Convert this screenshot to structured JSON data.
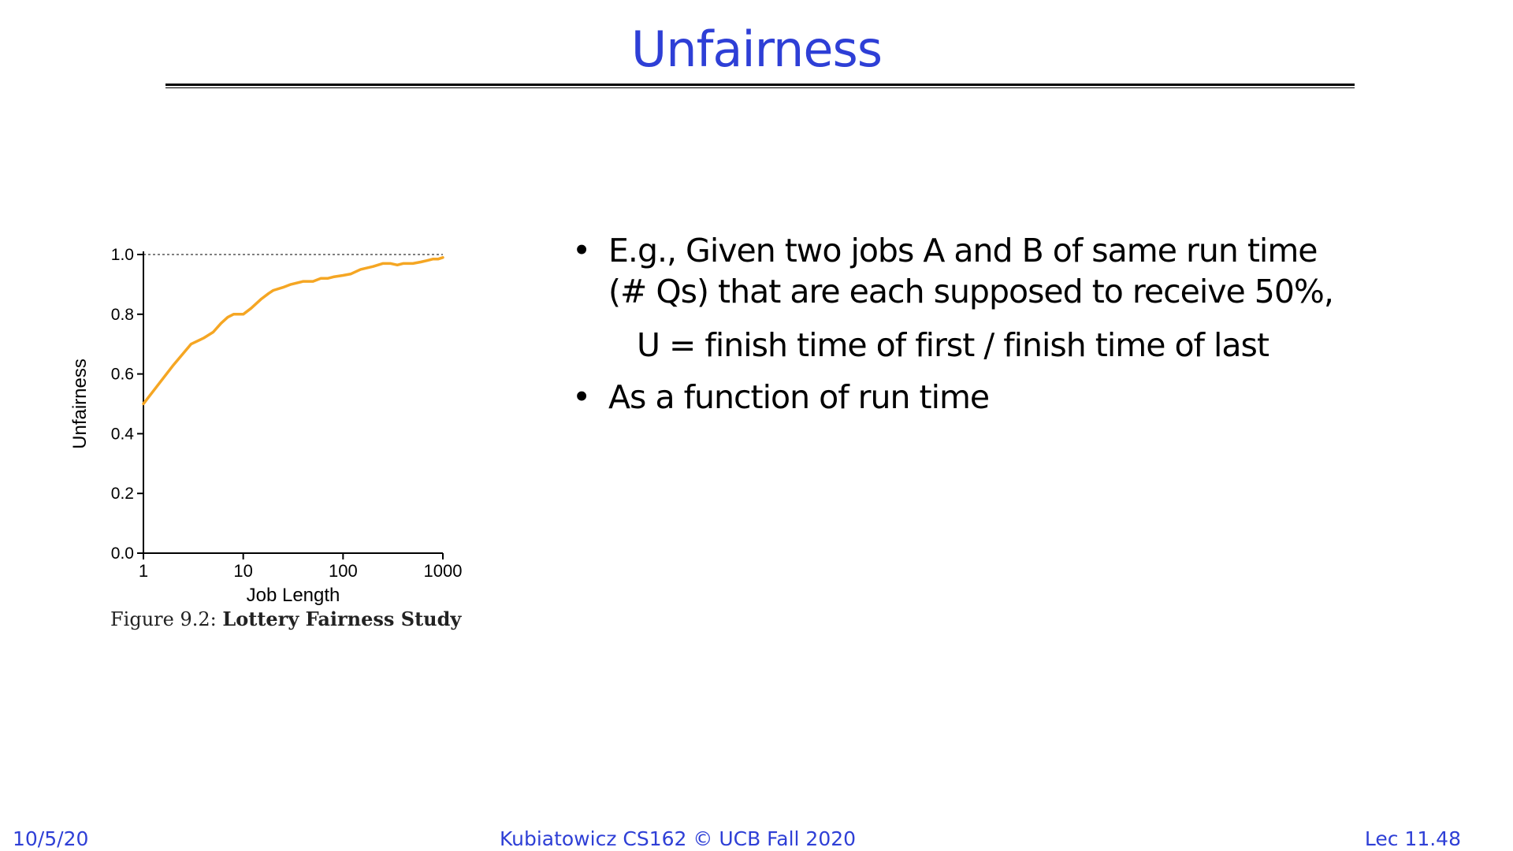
{
  "slide": {
    "title": "Unfairness",
    "bullets": [
      "E.g., Given two jobs A and B of same run time (# Qs) that are each supposed to receive 50%,",
      "As a function of run time"
    ],
    "formula": "U = finish time of first / finish time of last",
    "caption_prefix": "Figure 9.2: ",
    "caption_title": "Lottery Fairness Study",
    "footer_date": "10/5/20",
    "footer_center": "Kubiatowicz CS162 © UCB Fall 2020",
    "footer_lec": "Lec 11.48",
    "bullet_char": "•"
  },
  "colors": {
    "title": "#2e3fd6",
    "line": "#f5a623",
    "axis": "#000000",
    "reference": "#555555"
  },
  "chart_data": {
    "type": "line",
    "xlabel": "Job Length",
    "ylabel": "Unfairness",
    "xscale": "log",
    "xlim": [
      1,
      1000
    ],
    "ylim": [
      0.0,
      1.0
    ],
    "xticks": [
      1,
      10,
      100,
      1000
    ],
    "xtick_labels": [
      "1",
      "10",
      "100",
      "1000"
    ],
    "yticks": [
      0.0,
      0.2,
      0.4,
      0.6,
      0.8,
      1.0
    ],
    "ytick_labels": [
      "0.0",
      "0.2",
      "0.4",
      "0.6",
      "0.8",
      "1.0"
    ],
    "reference_line": {
      "y": 1.0,
      "style": "dotted"
    },
    "grid": false,
    "series": [
      {
        "x": [
          1,
          2,
          3,
          4,
          5,
          6,
          7,
          8,
          10,
          12,
          15,
          18,
          20,
          25,
          30,
          40,
          50,
          60,
          70,
          80,
          100,
          120,
          150,
          200,
          250,
          300,
          350,
          400,
          500,
          600,
          700,
          800,
          900,
          1000
        ],
        "y": [
          0.5,
          0.63,
          0.7,
          0.72,
          0.74,
          0.77,
          0.79,
          0.8,
          0.8,
          0.82,
          0.85,
          0.87,
          0.88,
          0.89,
          0.9,
          0.91,
          0.91,
          0.92,
          0.92,
          0.925,
          0.93,
          0.935,
          0.95,
          0.96,
          0.97,
          0.97,
          0.965,
          0.97,
          0.97,
          0.975,
          0.98,
          0.985,
          0.985,
          0.99
        ]
      }
    ]
  }
}
